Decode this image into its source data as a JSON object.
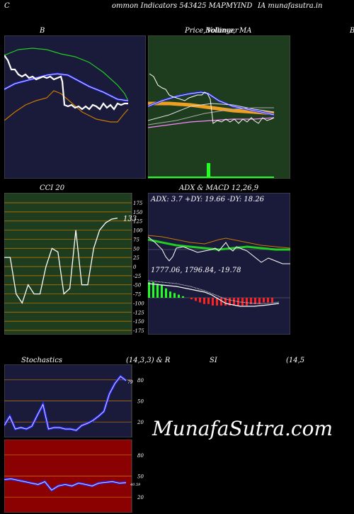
{
  "header": {
    "left": "C",
    "center": "ommon  Indicators 543425 MAPMYIND",
    "right": "IA munafasutra.in"
  },
  "row1": {
    "bollinger_title": "B",
    "price_title_1": "Price,",
    "price_title_2": "Volume,",
    "price_title_3": "MA",
    "price_title_overlap": "Bollinger",
    "right_edge_letter": "B"
  },
  "cci": {
    "title": "CCI 20",
    "value_label": "133",
    "ticks": [
      "175",
      "150",
      "125",
      "100",
      "75",
      "50",
      "25",
      "0",
      "-25",
      "-50",
      "-75",
      "-100",
      "-125",
      "-150",
      "-175"
    ]
  },
  "adx": {
    "title": "ADX  & MACD 12,26,9",
    "readout": "ADX: 3.7 +DY: 19.66  -DY: 18.26",
    "macd_readout": "1777.06,  1796.84,  -19.78"
  },
  "stoch": {
    "title_left": "Stochastics",
    "title_mid": "(14,3,3) & R",
    "title_si": "SI",
    "title_right": "(14,5",
    "ticks": [
      "80",
      "50",
      "20"
    ],
    "k_label": "79",
    "rsi_ticks": [
      "80",
      "50",
      "20"
    ],
    "rsi_label": "40.59"
  },
  "watermark": "MunafaSutra.com",
  "colors": {
    "navy": "#1a1a3a",
    "green_panel": "#1e3d1e",
    "rsi_bg": "#8b0000",
    "orange": "#cc7a00",
    "blue": "#2a2aff",
    "green": "#22cc22"
  },
  "chart_data": [
    {
      "type": "line",
      "panel": "bollinger",
      "series": [
        {
          "values": [
            92,
            82,
            80,
            78,
            74,
            62,
            60,
            70,
            60,
            58,
            62,
            59,
            60,
            58,
            56
          ]
        },
        {
          "values": [
            50,
            45,
            42,
            40,
            38,
            36,
            34,
            36,
            37,
            40,
            45,
            52,
            60,
            68,
            70
          ]
        },
        {
          "values": [
            75,
            68,
            65,
            62,
            60,
            58,
            57,
            56,
            57,
            58,
            60,
            63,
            66,
            68,
            68
          ]
        },
        {
          "values": [
            95,
            90,
            86,
            84,
            82,
            80,
            80,
            81,
            82,
            80,
            78,
            75,
            72,
            70,
            70
          ]
        }
      ]
    },
    {
      "type": "line",
      "panel": "price_volume_ma",
      "series": [
        {
          "values": [
            62,
            60,
            63,
            66,
            68,
            62,
            58,
            56,
            55,
            56,
            54,
            56
          ]
        },
        {
          "values": [
            60,
            62,
            61,
            59,
            58,
            57,
            56,
            55,
            55
          ]
        }
      ]
    },
    {
      "type": "line",
      "title": "CCI 20",
      "ylim": [
        -175,
        175
      ],
      "series": [
        {
          "values": [
            25,
            25,
            -75,
            -100,
            -50,
            -75,
            -75,
            0,
            50,
            40,
            -75,
            -60,
            100,
            -50,
            -50,
            50,
            100,
            120,
            130,
            133
          ]
        }
      ]
    },
    {
      "type": "line",
      "title": "ADX  & MACD 12,26,9",
      "series": [
        {
          "name": "ADX",
          "values": [
            3.7
          ]
        },
        {
          "name": "+DY",
          "values": [
            19.66
          ]
        },
        {
          "name": "-DY",
          "values": [
            18.26
          ]
        },
        {
          "name": "MACD",
          "values": [
            1777.06
          ]
        },
        {
          "name": "Signal",
          "values": [
            1796.84
          ]
        },
        {
          "name": "Histogram",
          "values": [
            -19.78
          ]
        }
      ]
    },
    {
      "type": "line",
      "title": "Stochastics",
      "ylim": [
        0,
        100
      ],
      "series": [
        {
          "values": [
            15,
            28,
            10,
            12,
            10,
            14,
            30,
            45,
            10,
            12,
            12,
            10,
            10,
            8,
            15,
            18,
            22,
            28,
            35,
            60,
            75,
            85,
            79
          ]
        }
      ]
    },
    {
      "type": "line",
      "title": "RSI",
      "ylim": [
        0,
        100
      ],
      "series": [
        {
          "values": [
            45,
            46,
            44,
            42,
            40,
            38,
            42,
            30,
            36,
            38,
            36,
            40,
            38,
            36,
            40,
            41,
            42,
            40,
            40.59
          ]
        }
      ]
    }
  ]
}
